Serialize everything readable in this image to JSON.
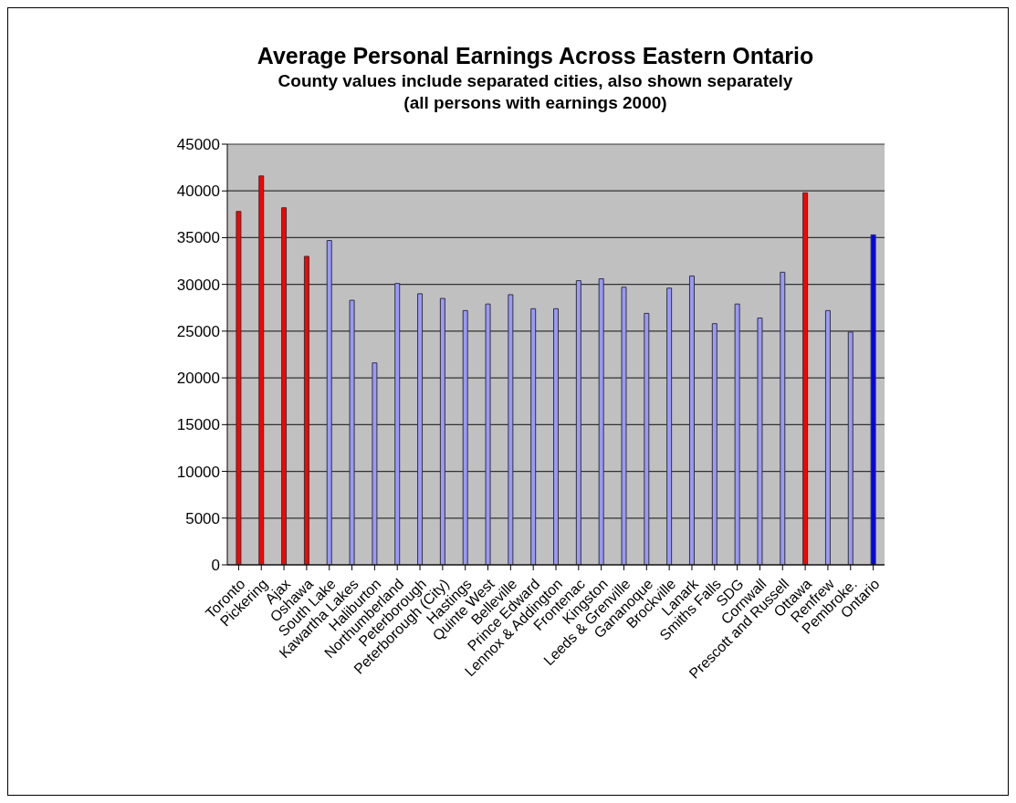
{
  "chart_data": {
    "type": "bar",
    "title": "Average Personal Earnings  Across Eastern Ontario",
    "subtitle": "County values include separated cities, also shown separately\n(all persons with earnings 2000)",
    "categories": [
      "Toronto",
      "Pickering",
      "Ajax",
      "Oshawa",
      "South Lake",
      "Kawartha Lakes",
      "Haliburton",
      "Northumberland",
      "Peterborough",
      "Peterborough (City)",
      "Hastings",
      "Quinte West",
      "Belleville",
      "Prince Edward",
      "Lennox & Addington",
      "Frontenac",
      "Kingston",
      "Leeds & Grenville",
      "Gananoque",
      "Brockville",
      "Lanark",
      "Smiths Falls",
      "SDG",
      "Cornwall",
      "Prescott and Russell",
      "Ottawa",
      "Renfrew",
      "Pembroke.",
      "Ontario"
    ],
    "values": [
      37800,
      41600,
      38200,
      33000,
      34700,
      28300,
      21600,
      30100,
      29000,
      28500,
      27200,
      27900,
      28900,
      27400,
      27400,
      30400,
      30600,
      29700,
      26900,
      29600,
      30900,
      25800,
      27900,
      26400,
      31300,
      39800,
      27200,
      24900,
      35300
    ],
    "colors": [
      "#ff0000",
      "#ff0000",
      "#ff0000",
      "#ff0000",
      "#9999ff",
      "#9999ff",
      "#9999ff",
      "#9999ff",
      "#9999ff",
      "#9999ff",
      "#9999ff",
      "#9999ff",
      "#9999ff",
      "#9999ff",
      "#9999ff",
      "#9999ff",
      "#9999ff",
      "#9999ff",
      "#9999ff",
      "#9999ff",
      "#9999ff",
      "#9999ff",
      "#9999ff",
      "#9999ff",
      "#9999ff",
      "#ff0000",
      "#9999ff",
      "#9999ff",
      "#0000ff"
    ],
    "ylim": [
      0,
      45000
    ],
    "yticks": [
      0,
      5000,
      10000,
      15000,
      20000,
      25000,
      30000,
      35000,
      40000,
      45000
    ],
    "grid": "y",
    "legend": false
  }
}
